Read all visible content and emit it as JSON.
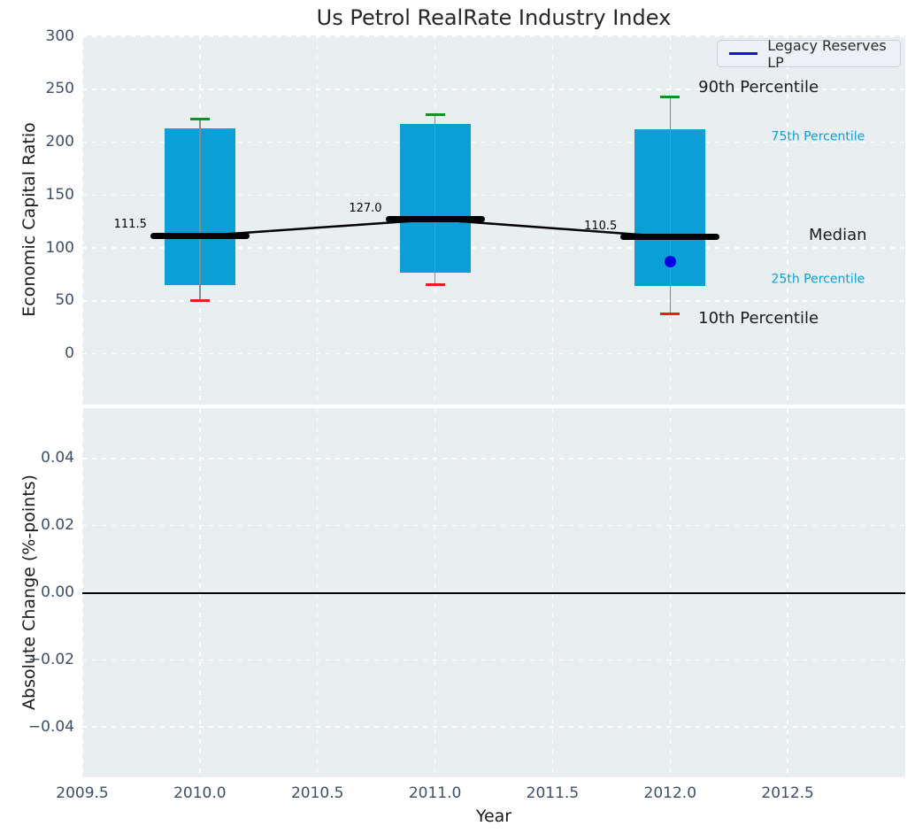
{
  "title": "Us Petrol RealRate Industry Index",
  "colors": {
    "plot_bg": "#e9eef1",
    "grid": "#ffffff",
    "box_fill": "#0c9fd6",
    "whisker": "#8a8a8a",
    "p90_cap": "#0e9320",
    "p10_cap": "#ec1c1c",
    "median": "#000000",
    "company_point": "#0000e0",
    "tick_label": "#3e4f6b",
    "axis_label": "#1a1a1a",
    "title_color": "#262626",
    "annotation_small": "#0d9fd6",
    "annotation_large": "#1a1a1a",
    "zero_line": "#000000",
    "legend_line": "#1111dd"
  },
  "chart_data": [
    {
      "type": "boxplot",
      "title": "Us Petrol RealRate Industry Index",
      "xlabel": "Year",
      "ylabel": "Economic Capital Ratio",
      "xlim": [
        2009.5,
        2013.0
      ],
      "ylim": [
        -48,
        301
      ],
      "grid": true,
      "x_ticks": [
        2009.5,
        2010.0,
        2010.5,
        2011.0,
        2011.5,
        2012.0,
        2012.5
      ],
      "x_tick_labels": [
        "2009.5",
        "2010.0",
        "2010.5",
        "2011.0",
        "2011.5",
        "2012.0",
        "2012.5"
      ],
      "y_ticks": [
        300,
        250,
        200,
        150,
        100,
        50,
        0
      ],
      "y_tick_labels": [
        "300",
        "250",
        "200",
        "150",
        "100",
        "50",
        "0"
      ],
      "legend": {
        "label": "Legacy Reserves LP",
        "position": "upper right"
      },
      "boxes": [
        {
          "year": 2010,
          "p10": 50,
          "p25": 65,
          "median": 111.5,
          "p75": 213,
          "p90": 222,
          "median_label": "111.5"
        },
        {
          "year": 2011,
          "p10": 65,
          "p25": 77,
          "median": 127.0,
          "p75": 217,
          "p90": 226,
          "median_label": "127.0"
        },
        {
          "year": 2012,
          "p10": 38,
          "p25": 64,
          "median": 110.5,
          "p75": 212,
          "p90": 243,
          "median_label": "110.5"
        }
      ],
      "median_line": {
        "x": [
          2010,
          2011,
          2012
        ],
        "y": [
          111.5,
          127.0,
          110.5
        ]
      },
      "company_series": {
        "name": "Legacy Reserves LP",
        "points": [
          {
            "x": 2012,
            "y": 87
          }
        ]
      },
      "annotations": [
        {
          "text": "90th Percentile",
          "x": 2012.12,
          "y": 251,
          "size": "large"
        },
        {
          "text": "75th Percentile",
          "x": 2012.43,
          "y": 205,
          "size": "small"
        },
        {
          "text": "Median",
          "x": 2012.59,
          "y": 111,
          "size": "large"
        },
        {
          "text": "25th Percentile",
          "x": 2012.43,
          "y": 70,
          "size": "small"
        },
        {
          "text": "10th Percentile",
          "x": 2012.12,
          "y": 32,
          "size": "large"
        }
      ]
    },
    {
      "type": "line",
      "xlabel": "Year",
      "ylabel": "Absolute Change (%-points)",
      "xlim": [
        2009.5,
        2013.0
      ],
      "ylim": [
        -0.055,
        0.055
      ],
      "grid": true,
      "x_ticks": [
        2009.5,
        2010.0,
        2010.5,
        2011.0,
        2011.5,
        2012.0,
        2012.5
      ],
      "x_tick_labels": [
        "2009.5",
        "2010.0",
        "2010.5",
        "2011.0",
        "2011.5",
        "2012.0",
        "2012.5"
      ],
      "y_ticks": [
        0.04,
        0.02,
        0.0,
        -0.02,
        -0.04
      ],
      "y_tick_labels": [
        "0.04",
        "0.02",
        "0.00",
        "−0.02",
        "−0.04"
      ],
      "zero_line_y": 0.0,
      "series": []
    }
  ]
}
